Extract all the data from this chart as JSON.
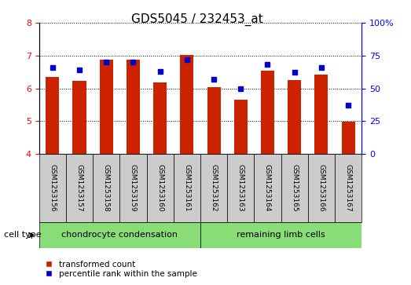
{
  "title": "GDS5045 / 232453_at",
  "samples": [
    "GSM1253156",
    "GSM1253157",
    "GSM1253158",
    "GSM1253159",
    "GSM1253160",
    "GSM1253161",
    "GSM1253162",
    "GSM1253163",
    "GSM1253164",
    "GSM1253165",
    "GSM1253166",
    "GSM1253167"
  ],
  "red_values": [
    6.35,
    6.22,
    6.87,
    6.87,
    6.18,
    7.02,
    6.03,
    5.65,
    6.55,
    6.25,
    6.42,
    4.98
  ],
  "blue_values": [
    66,
    64,
    70,
    70,
    63,
    72,
    57,
    50,
    68,
    62,
    66,
    37
  ],
  "ylim_left": [
    4,
    8
  ],
  "ylim_right": [
    0,
    100
  ],
  "yticks_left": [
    4,
    5,
    6,
    7,
    8
  ],
  "yticks_right": [
    0,
    25,
    50,
    75,
    100
  ],
  "group1_label": "chondrocyte condensation",
  "group2_label": "remaining limb cells",
  "cell_type_label": "cell type",
  "legend_red": "transformed count",
  "legend_blue": "percentile rank within the sample",
  "bar_color": "#CC2200",
  "dot_color": "#0000CC",
  "group_color": "#88DD77",
  "sample_bg_color": "#CCCCCC",
  "plot_bg": "#FFFFFF",
  "title_fontsize": 11,
  "tick_fontsize": 8,
  "sample_fontsize": 6.5,
  "group_fontsize": 8,
  "legend_fontsize": 7.5
}
